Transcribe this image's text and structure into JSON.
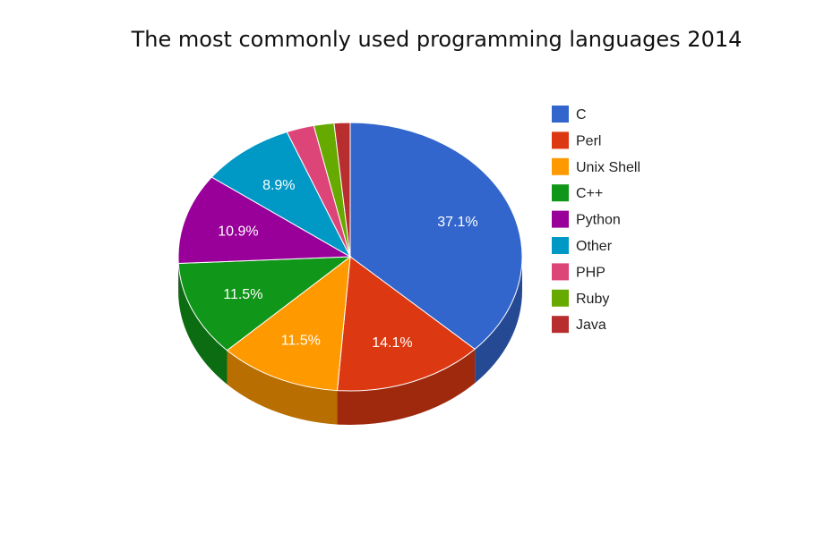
{
  "chart_data": {
    "type": "pie",
    "title": "The most commonly used programming languages 2014",
    "legend_position": "right",
    "three_d": true,
    "slices": [
      {
        "name": "C",
        "value": 37.1,
        "label": "37.1%",
        "color": "#3366cc"
      },
      {
        "name": "Perl",
        "value": 14.1,
        "label": "14.1%",
        "color": "#dc3912"
      },
      {
        "name": "Unix Shell",
        "value": 11.5,
        "label": "11.5%",
        "color": "#ff9900"
      },
      {
        "name": "C++",
        "value": 11.5,
        "label": "11.5%",
        "color": "#109618"
      },
      {
        "name": "Python",
        "value": 10.9,
        "label": "10.9%",
        "color": "#990099"
      },
      {
        "name": "Other",
        "value": 8.9,
        "label": "8.9%",
        "color": "#0099c6"
      },
      {
        "name": "PHP",
        "value": 2.6,
        "label": "",
        "color": "#dd4477"
      },
      {
        "name": "Ruby",
        "value": 1.9,
        "label": "",
        "color": "#66aa00"
      },
      {
        "name": "Java",
        "value": 1.5,
        "label": "",
        "color": "#b82e2e"
      }
    ]
  }
}
